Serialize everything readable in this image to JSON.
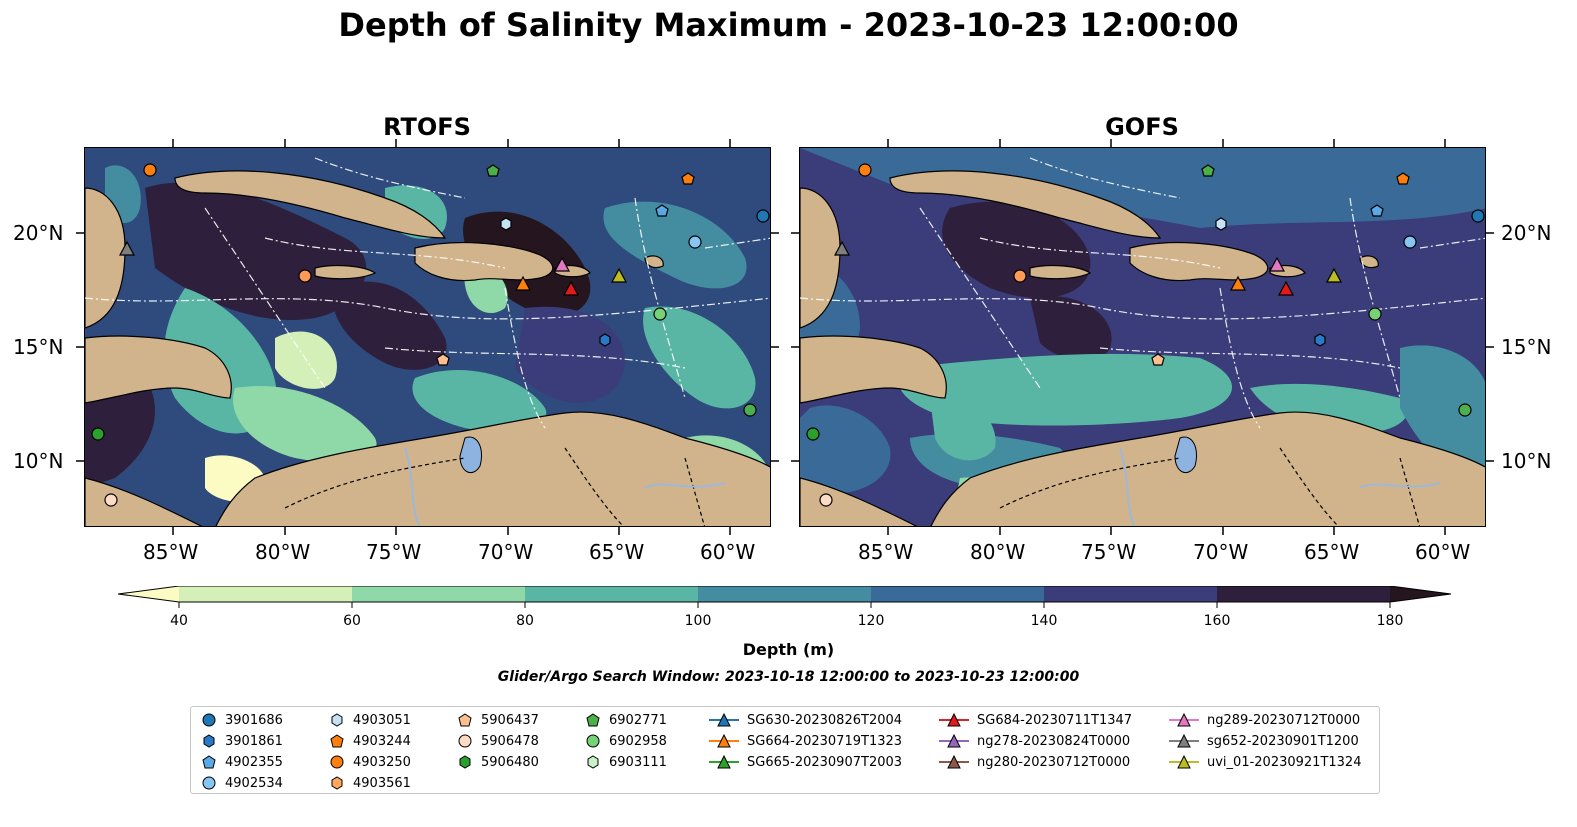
{
  "title": "Depth of Salinity Maximum - 2023-10-23 12:00:00",
  "panels": [
    {
      "title": "RTOFS"
    },
    {
      "title": "GOFS"
    }
  ],
  "axes": {
    "lon_ticks": [
      "85°W",
      "80°W",
      "75°W",
      "70°W",
      "65°W",
      "60°W"
    ],
    "lat_ticks": [
      "20°N",
      "15°N",
      "10°N"
    ]
  },
  "colorbar": {
    "label": "Depth (m)",
    "ticks": [
      "40",
      "60",
      "80",
      "100",
      "120",
      "140",
      "160",
      "180"
    ],
    "colors": [
      "#fcfbc4",
      "#d5efb8",
      "#8fd8a7",
      "#59b6a5",
      "#448da1",
      "#3a6a98",
      "#3b3c7a",
      "#2e1f3c",
      "#24151f"
    ]
  },
  "search_window": "Glider/Argo Search Window: 2023-10-18 12:00:00 to 2023-10-23 12:00:00",
  "land_color": "#d2b48c",
  "legend": {
    "col1": [
      "3901686",
      "3901861",
      "4902355",
      "4902534"
    ],
    "col2": [
      "4903051",
      "4903244",
      "4903250",
      "4903561"
    ],
    "col3": [
      "5906437",
      "5906478",
      "5906480"
    ],
    "col4": [
      "6902771",
      "6902958",
      "6903111"
    ],
    "col5": [
      "SG630-20230826T2004",
      "SG664-20230719T1323",
      "SG665-20230907T2003"
    ],
    "col6": [
      "SG684-20230711T1347",
      "ng278-20230824T0000",
      "ng280-20230712T0000"
    ],
    "col7": [
      "ng289-20230712T0000",
      "sg652-20230901T1200",
      "uvi_01-20230921T1324"
    ]
  }
}
